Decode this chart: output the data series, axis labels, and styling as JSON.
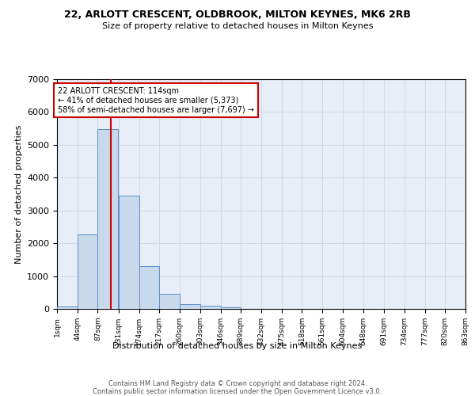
{
  "title": "22, ARLOTT CRESCENT, OLDBROOK, MILTON KEYNES, MK6 2RB",
  "subtitle": "Size of property relative to detached houses in Milton Keynes",
  "xlabel": "Distribution of detached houses by size in Milton Keynes",
  "ylabel": "Number of detached properties",
  "footer_line1": "Contains HM Land Registry data © Crown copyright and database right 2024.",
  "footer_line2": "Contains public sector information licensed under the Open Government Licence v3.0.",
  "bin_edges": [
    1,
    44,
    87,
    131,
    174,
    217,
    260,
    303,
    346,
    389,
    432,
    475,
    518,
    561,
    604,
    648,
    691,
    734,
    777,
    820,
    863
  ],
  "bar_heights": [
    75,
    2280,
    5480,
    3450,
    1310,
    460,
    155,
    85,
    45,
    0,
    0,
    0,
    0,
    0,
    0,
    0,
    0,
    0,
    0,
    0
  ],
  "bar_color": "#c9d9ec",
  "bar_edge_color": "#5b8fc9",
  "grid_color": "#d0d8e8",
  "background_color": "#e8eef8",
  "property_size": 114,
  "marker_line_color": "#cc0000",
  "annotation_text": "22 ARLOTT CRESCENT: 114sqm\n← 41% of detached houses are smaller (5,373)\n58% of semi-detached houses are larger (7,697) →",
  "annotation_box_color": "#cc0000",
  "ylim": [
    0,
    7000
  ],
  "yticks": [
    0,
    1000,
    2000,
    3000,
    4000,
    5000,
    6000,
    7000
  ]
}
